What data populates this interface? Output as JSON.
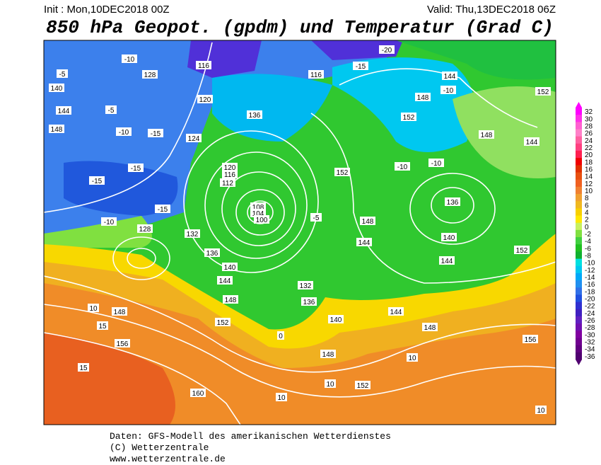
{
  "header": {
    "init": "Init : Mon,10DEC2018 00Z",
    "valid": "Valid: Thu,13DEC2018 06Z",
    "title": "850 hPa Geopot. (gpdm) und Temperatur (Grad C)"
  },
  "colorbar": {
    "levels": [
      32,
      30,
      28,
      26,
      24,
      22,
      20,
      18,
      16,
      14,
      12,
      10,
      8,
      6,
      4,
      2,
      0,
      -2,
      -4,
      -6,
      -8,
      -10,
      -12,
      -14,
      -16,
      -18,
      -20,
      -22,
      -24,
      -26,
      -28,
      -30,
      -32,
      -34,
      -36
    ]
  },
  "map": {
    "contour_labels": [
      -10,
      -5,
      128,
      116,
      -20,
      116,
      -15,
      144,
      -10,
      152,
      140,
      144,
      148,
      -10,
      -15,
      124,
      -5,
      136,
      120,
      148,
      152,
      -10,
      148,
      144,
      -15,
      -15,
      120,
      116,
      112,
      152,
      -10,
      108,
      104,
      100,
      -15,
      -10,
      128,
      132,
      136,
      140,
      144,
      148,
      152,
      156,
      160,
      10,
      15,
      148,
      132,
      136,
      140,
      148,
      152,
      10,
      144,
      148,
      152,
      156,
      136,
      140,
      144,
      -5,
      148,
      144,
      0,
      15,
      10,
      10,
      10
    ]
  },
  "footer": {
    "source": "Daten: GFS-Modell des amerikanischen Wetterdienstes",
    "copyright": "(C) Wetterzentrale",
    "url": "www.wetterzentrale.de"
  }
}
